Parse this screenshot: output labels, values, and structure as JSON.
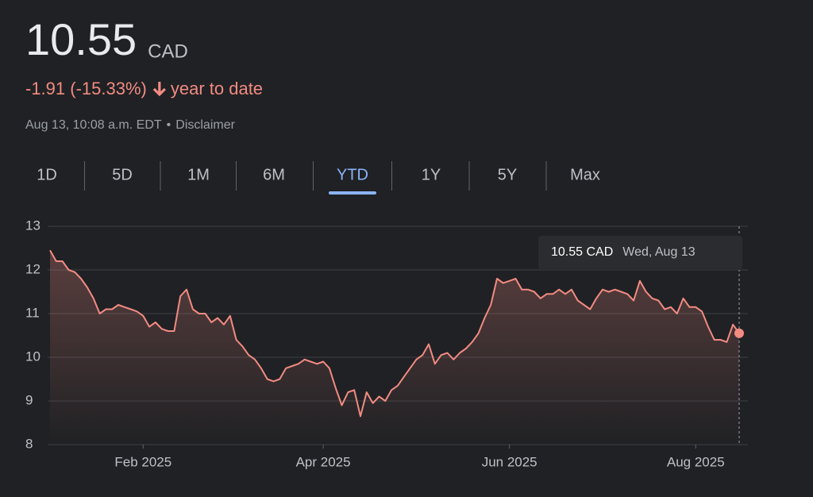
{
  "header": {
    "price": "10.55",
    "currency": "CAD",
    "change": "-1.91 (-15.33%)",
    "period": "year to date",
    "timestamp": "Aug 13, 10:08 a.m. EDT",
    "separator": "•",
    "disclaimer": "Disclaimer"
  },
  "ranges": {
    "items": [
      "1D",
      "5D",
      "1M",
      "6M",
      "YTD",
      "1Y",
      "5Y",
      "Max"
    ],
    "selected": 4
  },
  "chart_data": {
    "type": "line",
    "series": [
      {
        "color": "#f28b82",
        "values": [
          12.45,
          12.2,
          12.2,
          12.0,
          11.95,
          11.8,
          11.6,
          11.35,
          11.0,
          11.1,
          11.1,
          11.2,
          11.15,
          11.1,
          11.05,
          10.95,
          10.7,
          10.8,
          10.65,
          10.6,
          10.6,
          11.4,
          11.55,
          11.1,
          11.0,
          11.0,
          10.8,
          10.9,
          10.75,
          10.95,
          10.4,
          10.25,
          10.05,
          9.95,
          9.75,
          9.5,
          9.45,
          9.5,
          9.75,
          9.8,
          9.85,
          9.95,
          9.9,
          9.85,
          9.9,
          9.75,
          9.3,
          8.9,
          9.2,
          9.25,
          8.65,
          9.2,
          8.95,
          9.1,
          9.0,
          9.25,
          9.35,
          9.55,
          9.75,
          9.95,
          10.05,
          10.3,
          9.85,
          10.05,
          10.1,
          9.95,
          10.1,
          10.2,
          10.35,
          10.55,
          10.9,
          11.2,
          11.8,
          11.7,
          11.75,
          11.8,
          11.55,
          11.55,
          11.5,
          11.35,
          11.45,
          11.45,
          11.55,
          11.45,
          11.55,
          11.3,
          11.2,
          11.1,
          11.35,
          11.55,
          11.5,
          11.55,
          11.5,
          11.45,
          11.3,
          11.75,
          11.5,
          11.35,
          11.3,
          11.1,
          11.15,
          11.0,
          11.35,
          11.15,
          11.15,
          11.05,
          10.7,
          10.4,
          10.4,
          10.35,
          10.75,
          10.55
        ]
      }
    ],
    "xlim": [
      0,
      111
    ],
    "xticks": [
      {
        "value": 15,
        "label": "Feb 2025"
      },
      {
        "value": 44,
        "label": "Apr 2025"
      },
      {
        "value": 74,
        "label": "Jun 2025"
      },
      {
        "value": 104,
        "label": "Aug 2025"
      }
    ],
    "ylim": [
      8,
      13
    ],
    "yticks": [
      8,
      9,
      10,
      11,
      12,
      13
    ],
    "grid": true,
    "tooltip": {
      "price": "10.55 CAD",
      "date": "Wed, Aug 13"
    }
  }
}
